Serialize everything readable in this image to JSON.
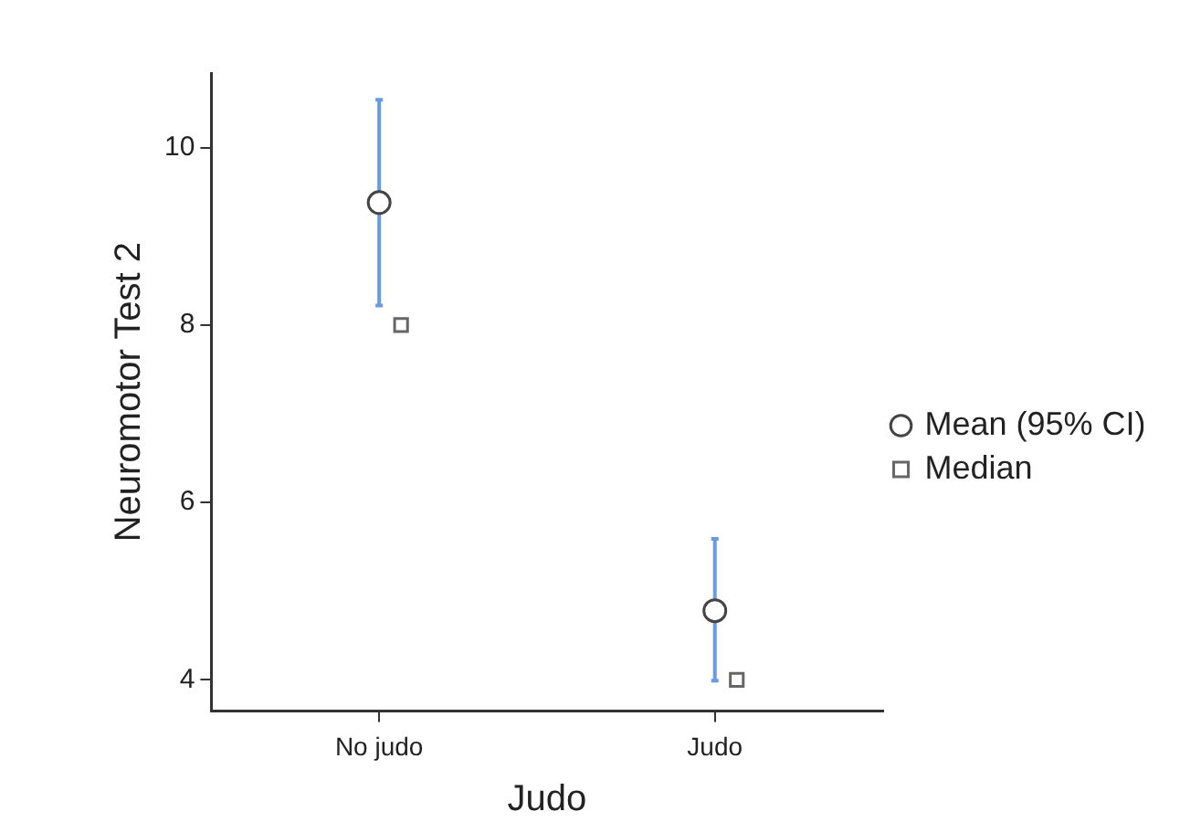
{
  "chart_data": {
    "type": "scatter",
    "xlabel": "Judo",
    "ylabel": "Neuromotor Test 2",
    "categories": [
      "No judo",
      "Judo"
    ],
    "series": [
      {
        "name": "Mean (95% CI)",
        "color": "#444444",
        "marker": "circle",
        "values": [
          9.38,
          4.78
        ],
        "errors": [
          [
            8.22,
            10.54
          ],
          [
            3.99,
            5.59
          ]
        ]
      },
      {
        "name": "Median",
        "color": "#666666",
        "marker": "square",
        "values": [
          8,
          4
        ]
      }
    ],
    "ylim": [
      3.65,
      10.84
    ],
    "yticks": [
      4,
      6,
      8,
      10
    ],
    "legend": "right"
  }
}
